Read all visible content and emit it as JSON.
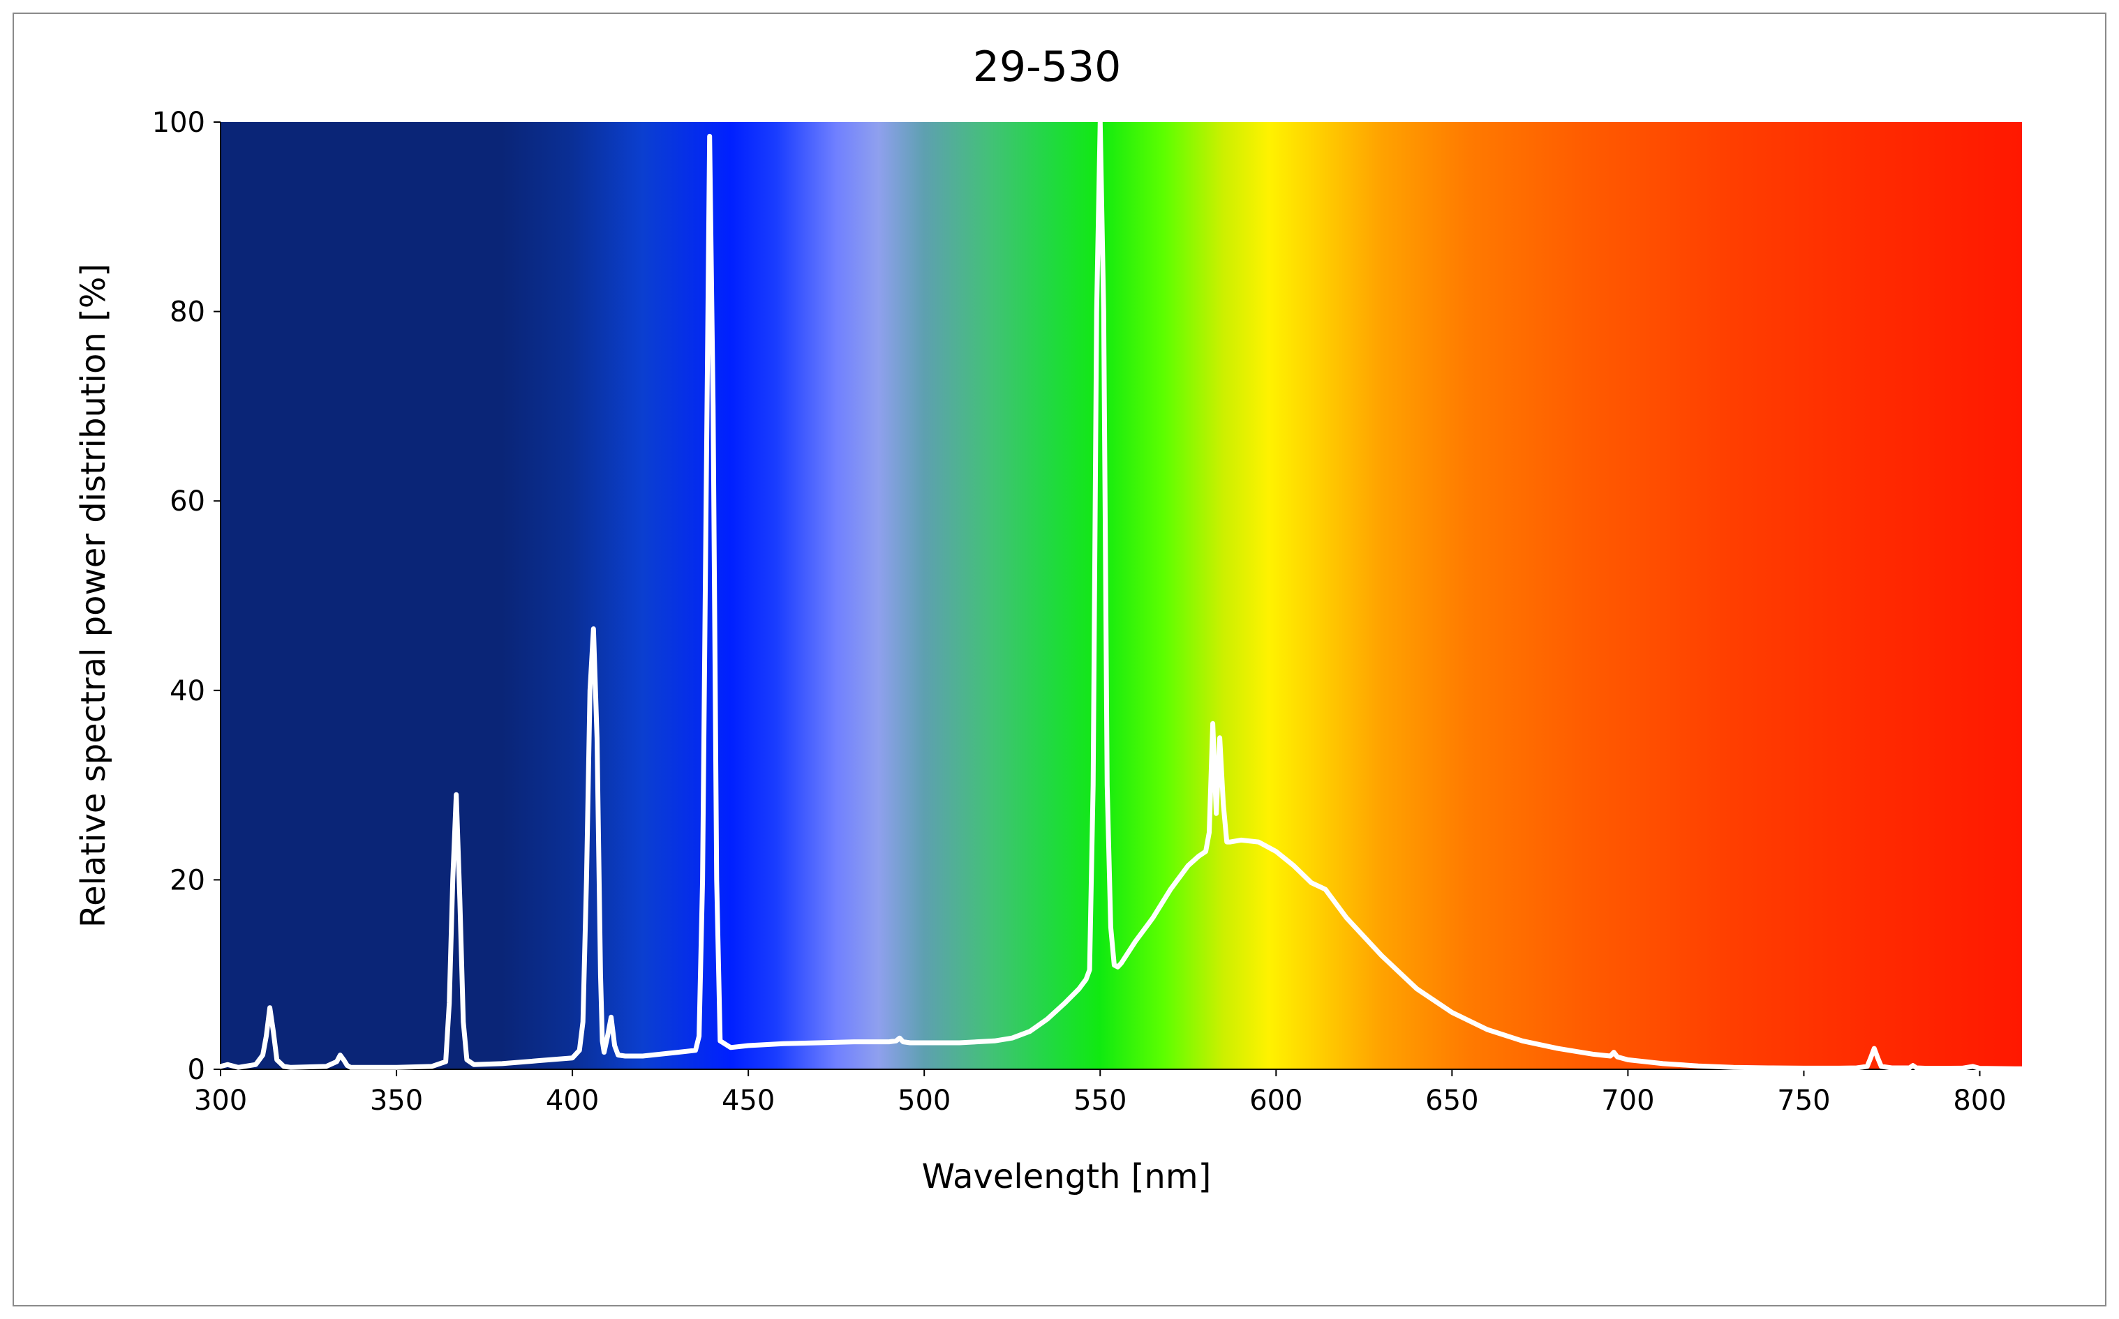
{
  "chart_data": {
    "type": "line",
    "title": "29-530",
    "xlabel": "Wavelength [nm]",
    "ylabel": "Relative spectral power distribution [%]",
    "xlim": [
      300,
      812
    ],
    "ylim": [
      0,
      100
    ],
    "x_ticks": [
      "300",
      "350",
      "400",
      "450",
      "500",
      "550",
      "600",
      "650",
      "700",
      "750",
      "800"
    ],
    "y_ticks": [
      "0",
      "20",
      "40",
      "60",
      "80",
      "100"
    ],
    "grid": false,
    "legend": "none",
    "background": "visible-spectrum gradient",
    "line_color": "#ffffff",
    "spectrum_stops": [
      {
        "nm": 300,
        "color": "#0a2577"
      },
      {
        "nm": 380,
        "color": "#0a2577"
      },
      {
        "nm": 400,
        "color": "#0a2f96"
      },
      {
        "nm": 420,
        "color": "#0b3fd0"
      },
      {
        "nm": 445,
        "color": "#0020ff"
      },
      {
        "nm": 458,
        "color": "#1a3dff"
      },
      {
        "nm": 475,
        "color": "#7080ff"
      },
      {
        "nm": 487,
        "color": "#8fa0ee"
      },
      {
        "nm": 500,
        "color": "#5ea0b0"
      },
      {
        "nm": 518,
        "color": "#44c07a"
      },
      {
        "nm": 535,
        "color": "#22d844"
      },
      {
        "nm": 550,
        "color": "#10ea10"
      },
      {
        "nm": 568,
        "color": "#5cff00"
      },
      {
        "nm": 585,
        "color": "#ccf000"
      },
      {
        "nm": 598,
        "color": "#fff200"
      },
      {
        "nm": 612,
        "color": "#ffd000"
      },
      {
        "nm": 630,
        "color": "#ffa200"
      },
      {
        "nm": 655,
        "color": "#ff7a00"
      },
      {
        "nm": 690,
        "color": "#ff5a00"
      },
      {
        "nm": 730,
        "color": "#ff3e00"
      },
      {
        "nm": 770,
        "color": "#ff2a00"
      },
      {
        "nm": 812,
        "color": "#ff1800"
      }
    ],
    "series": [
      {
        "x": [
          300,
          302,
          305,
          310,
          312,
          313,
          314,
          315,
          316,
          318,
          320,
          330,
          333,
          334,
          335,
          336,
          337,
          340,
          350,
          360,
          364,
          365,
          366,
          367,
          368,
          369,
          370,
          372,
          380,
          390,
          400,
          402,
          403,
          404,
          405,
          406,
          407,
          408,
          408.5,
          409,
          410,
          411,
          412,
          413,
          415,
          420,
          430,
          435,
          436,
          437,
          438,
          439,
          440,
          441,
          442,
          445,
          450,
          460,
          470,
          480,
          490,
          492,
          493,
          494,
          496,
          500,
          510,
          520,
          525,
          530,
          535,
          540,
          544,
          546,
          547,
          548,
          549,
          550,
          551,
          552,
          553,
          554,
          555,
          556,
          560,
          565,
          570,
          575,
          578,
          580,
          581,
          582,
          583,
          584,
          585,
          586,
          587,
          590,
          595,
          600,
          605,
          610,
          614,
          615,
          620,
          630,
          640,
          650,
          660,
          670,
          680,
          690,
          695,
          696,
          697,
          700,
          710,
          720,
          730,
          740,
          750,
          760,
          765,
          768,
          769,
          770,
          771,
          772,
          775,
          780,
          781,
          782,
          785,
          790,
          795,
          798,
          800,
          810,
          812
        ],
        "y": [
          0.3,
          0.5,
          0.2,
          0.5,
          1.5,
          3.5,
          6.5,
          4.0,
          1.0,
          0.3,
          0.2,
          0.3,
          0.8,
          1.5,
          1.0,
          0.4,
          0.2,
          0.2,
          0.2,
          0.3,
          0.8,
          7.0,
          20.0,
          29.0,
          18.0,
          5.0,
          1.0,
          0.5,
          0.6,
          0.9,
          1.2,
          2.0,
          5.0,
          20.0,
          40.0,
          46.5,
          35.0,
          10.0,
          3.0,
          1.8,
          3.5,
          5.5,
          2.5,
          1.5,
          1.4,
          1.4,
          1.8,
          2.0,
          3.5,
          20.0,
          60.0,
          98.5,
          70.0,
          20.0,
          3.0,
          2.3,
          2.5,
          2.7,
          2.8,
          2.9,
          2.9,
          3.0,
          3.3,
          2.9,
          2.8,
          2.8,
          2.8,
          3.0,
          3.3,
          4.0,
          5.3,
          7.0,
          8.5,
          9.5,
          10.5,
          30.0,
          80.0,
          100,
          80.0,
          30.0,
          15.0,
          11.0,
          10.8,
          11.2,
          13.5,
          16.0,
          19.0,
          21.5,
          22.5,
          23.0,
          25.0,
          36.5,
          27.0,
          35.0,
          28.0,
          24.0,
          24.0,
          24.2,
          24.0,
          23.0,
          21.5,
          19.7,
          19.0,
          18.5,
          16.0,
          12.0,
          8.5,
          6.0,
          4.2,
          3.0,
          2.2,
          1.6,
          1.4,
          1.8,
          1.3,
          1.0,
          0.6,
          0.35,
          0.2,
          0.15,
          0.12,
          0.12,
          0.15,
          0.3,
          1.2,
          2.2,
          1.2,
          0.3,
          0.15,
          0.15,
          0.4,
          0.15,
          0.1,
          0.1,
          0.12,
          0.3,
          0.1,
          0.05,
          0.05
        ]
      }
    ]
  }
}
